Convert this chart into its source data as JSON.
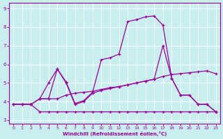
{
  "xlabel": "Windchill (Refroidissement éolien,°C)",
  "bg_color": "#c8eef0",
  "line_color": "#990099",
  "grid_color": "#ffffff",
  "xlim": [
    -0.5,
    23.5
  ],
  "ylim": [
    2.8,
    9.3
  ],
  "xticks": [
    0,
    1,
    2,
    3,
    4,
    5,
    6,
    7,
    8,
    9,
    10,
    11,
    12,
    13,
    14,
    15,
    16,
    17,
    18,
    19,
    20,
    21,
    22,
    23
  ],
  "yticks": [
    3,
    4,
    5,
    6,
    7,
    8,
    9
  ],
  "line1_x": [
    0,
    1,
    2,
    3,
    4,
    5,
    6,
    7,
    8,
    9,
    10,
    11,
    12,
    13,
    14,
    15,
    16,
    17,
    18,
    19,
    20,
    21,
    22,
    23
  ],
  "line1_y": [
    3.85,
    3.85,
    3.85,
    3.45,
    3.45,
    3.45,
    3.45,
    3.45,
    3.45,
    3.45,
    3.45,
    3.45,
    3.45,
    3.45,
    3.45,
    3.45,
    3.45,
    3.45,
    3.45,
    3.45,
    3.45,
    3.45,
    3.45,
    3.45
  ],
  "line2_x": [
    0,
    1,
    2,
    3,
    4,
    5,
    6,
    7,
    8,
    9,
    10,
    11,
    12,
    13,
    14,
    15,
    16,
    17,
    18,
    19,
    20,
    21,
    22,
    23
  ],
  "line2_y": [
    3.85,
    3.85,
    3.85,
    4.15,
    5.0,
    5.75,
    5.0,
    3.85,
    4.0,
    4.45,
    4.6,
    4.7,
    4.8,
    4.9,
    5.0,
    5.1,
    5.2,
    5.35,
    5.45,
    5.5,
    5.55,
    5.6,
    5.65,
    5.5
  ],
  "line3_x": [
    0,
    1,
    2,
    3,
    4,
    5,
    6,
    7,
    8,
    9,
    10,
    11,
    12,
    13,
    14,
    15,
    16,
    17,
    18,
    19,
    20,
    21,
    22,
    23
  ],
  "line3_y": [
    3.85,
    3.85,
    3.85,
    4.15,
    4.15,
    5.75,
    5.05,
    3.9,
    4.05,
    4.5,
    6.25,
    6.35,
    6.55,
    8.3,
    8.4,
    8.55,
    8.6,
    8.1,
    5.25,
    4.35,
    4.35,
    3.85,
    3.85,
    3.45
  ],
  "line4_x": [
    3,
    4,
    5,
    6,
    7,
    8,
    9,
    10,
    11,
    12,
    13,
    14,
    15,
    16,
    17,
    18,
    19,
    20,
    21,
    22,
    23
  ],
  "line4_y": [
    4.15,
    4.15,
    4.15,
    4.35,
    4.45,
    4.5,
    4.55,
    4.65,
    4.75,
    4.8,
    4.9,
    5.0,
    5.1,
    5.2,
    7.0,
    5.25,
    4.35,
    4.35,
    3.85,
    3.85,
    3.45
  ]
}
